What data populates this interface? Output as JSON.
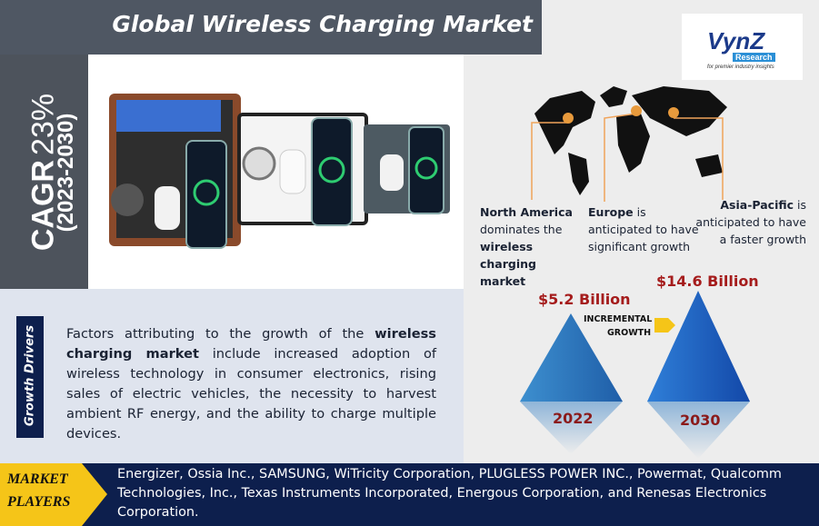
{
  "header": {
    "title": "Global Wireless Charging Market"
  },
  "cagr": {
    "label": "CAGR",
    "value": "23%",
    "period": "(2023-2030)"
  },
  "logo": {
    "name": "VynZ",
    "sub": "Research",
    "tagline": "for premier industry insights"
  },
  "regions": [
    {
      "segments": [
        {
          "text": "North America",
          "bold": true
        },
        {
          "text": " dominates the ",
          "bold": false
        },
        {
          "text": "wireless charging market",
          "bold": true
        }
      ]
    },
    {
      "segments": [
        {
          "text": "Europe",
          "bold": true
        },
        {
          "text": " is anticipated to have significant growth",
          "bold": false
        }
      ]
    },
    {
      "segments": [
        {
          "text": "Asia-Pacific",
          "bold": true
        },
        {
          "text": " is anticipated to have a faster growth",
          "bold": false
        }
      ]
    }
  ],
  "growth": {
    "start": {
      "value": "$5.2 Billion",
      "year": "2022"
    },
    "end": {
      "value": "$14.6 Billion",
      "year": "2030"
    },
    "label": [
      "INCREMENTAL",
      "GROWTH"
    ]
  },
  "drivers": {
    "title": "Growth Drivers",
    "segments": [
      {
        "text": "Factors attributing to the growth of the ",
        "bold": false
      },
      {
        "text": "wireless charging market",
        "bold": true
      },
      {
        "text": " include increased adoption of wireless technology in consumer electronics, rising sales of electric vehicles, the necessity to harvest ambient RF energy, and the ability to charge multiple devices.",
        "bold": false
      }
    ]
  },
  "players": {
    "title": [
      "MARKET",
      "PLAYERS"
    ],
    "text": "Energizer, Ossia Inc., SAMSUNG, WiTricity Corporation, PLUGLESS POWER INC., Powermat, Qualcomm Technologies, Inc., Texas Instruments Incorporated, Energous Corporation, and Renesas Electronics Corporation."
  }
}
